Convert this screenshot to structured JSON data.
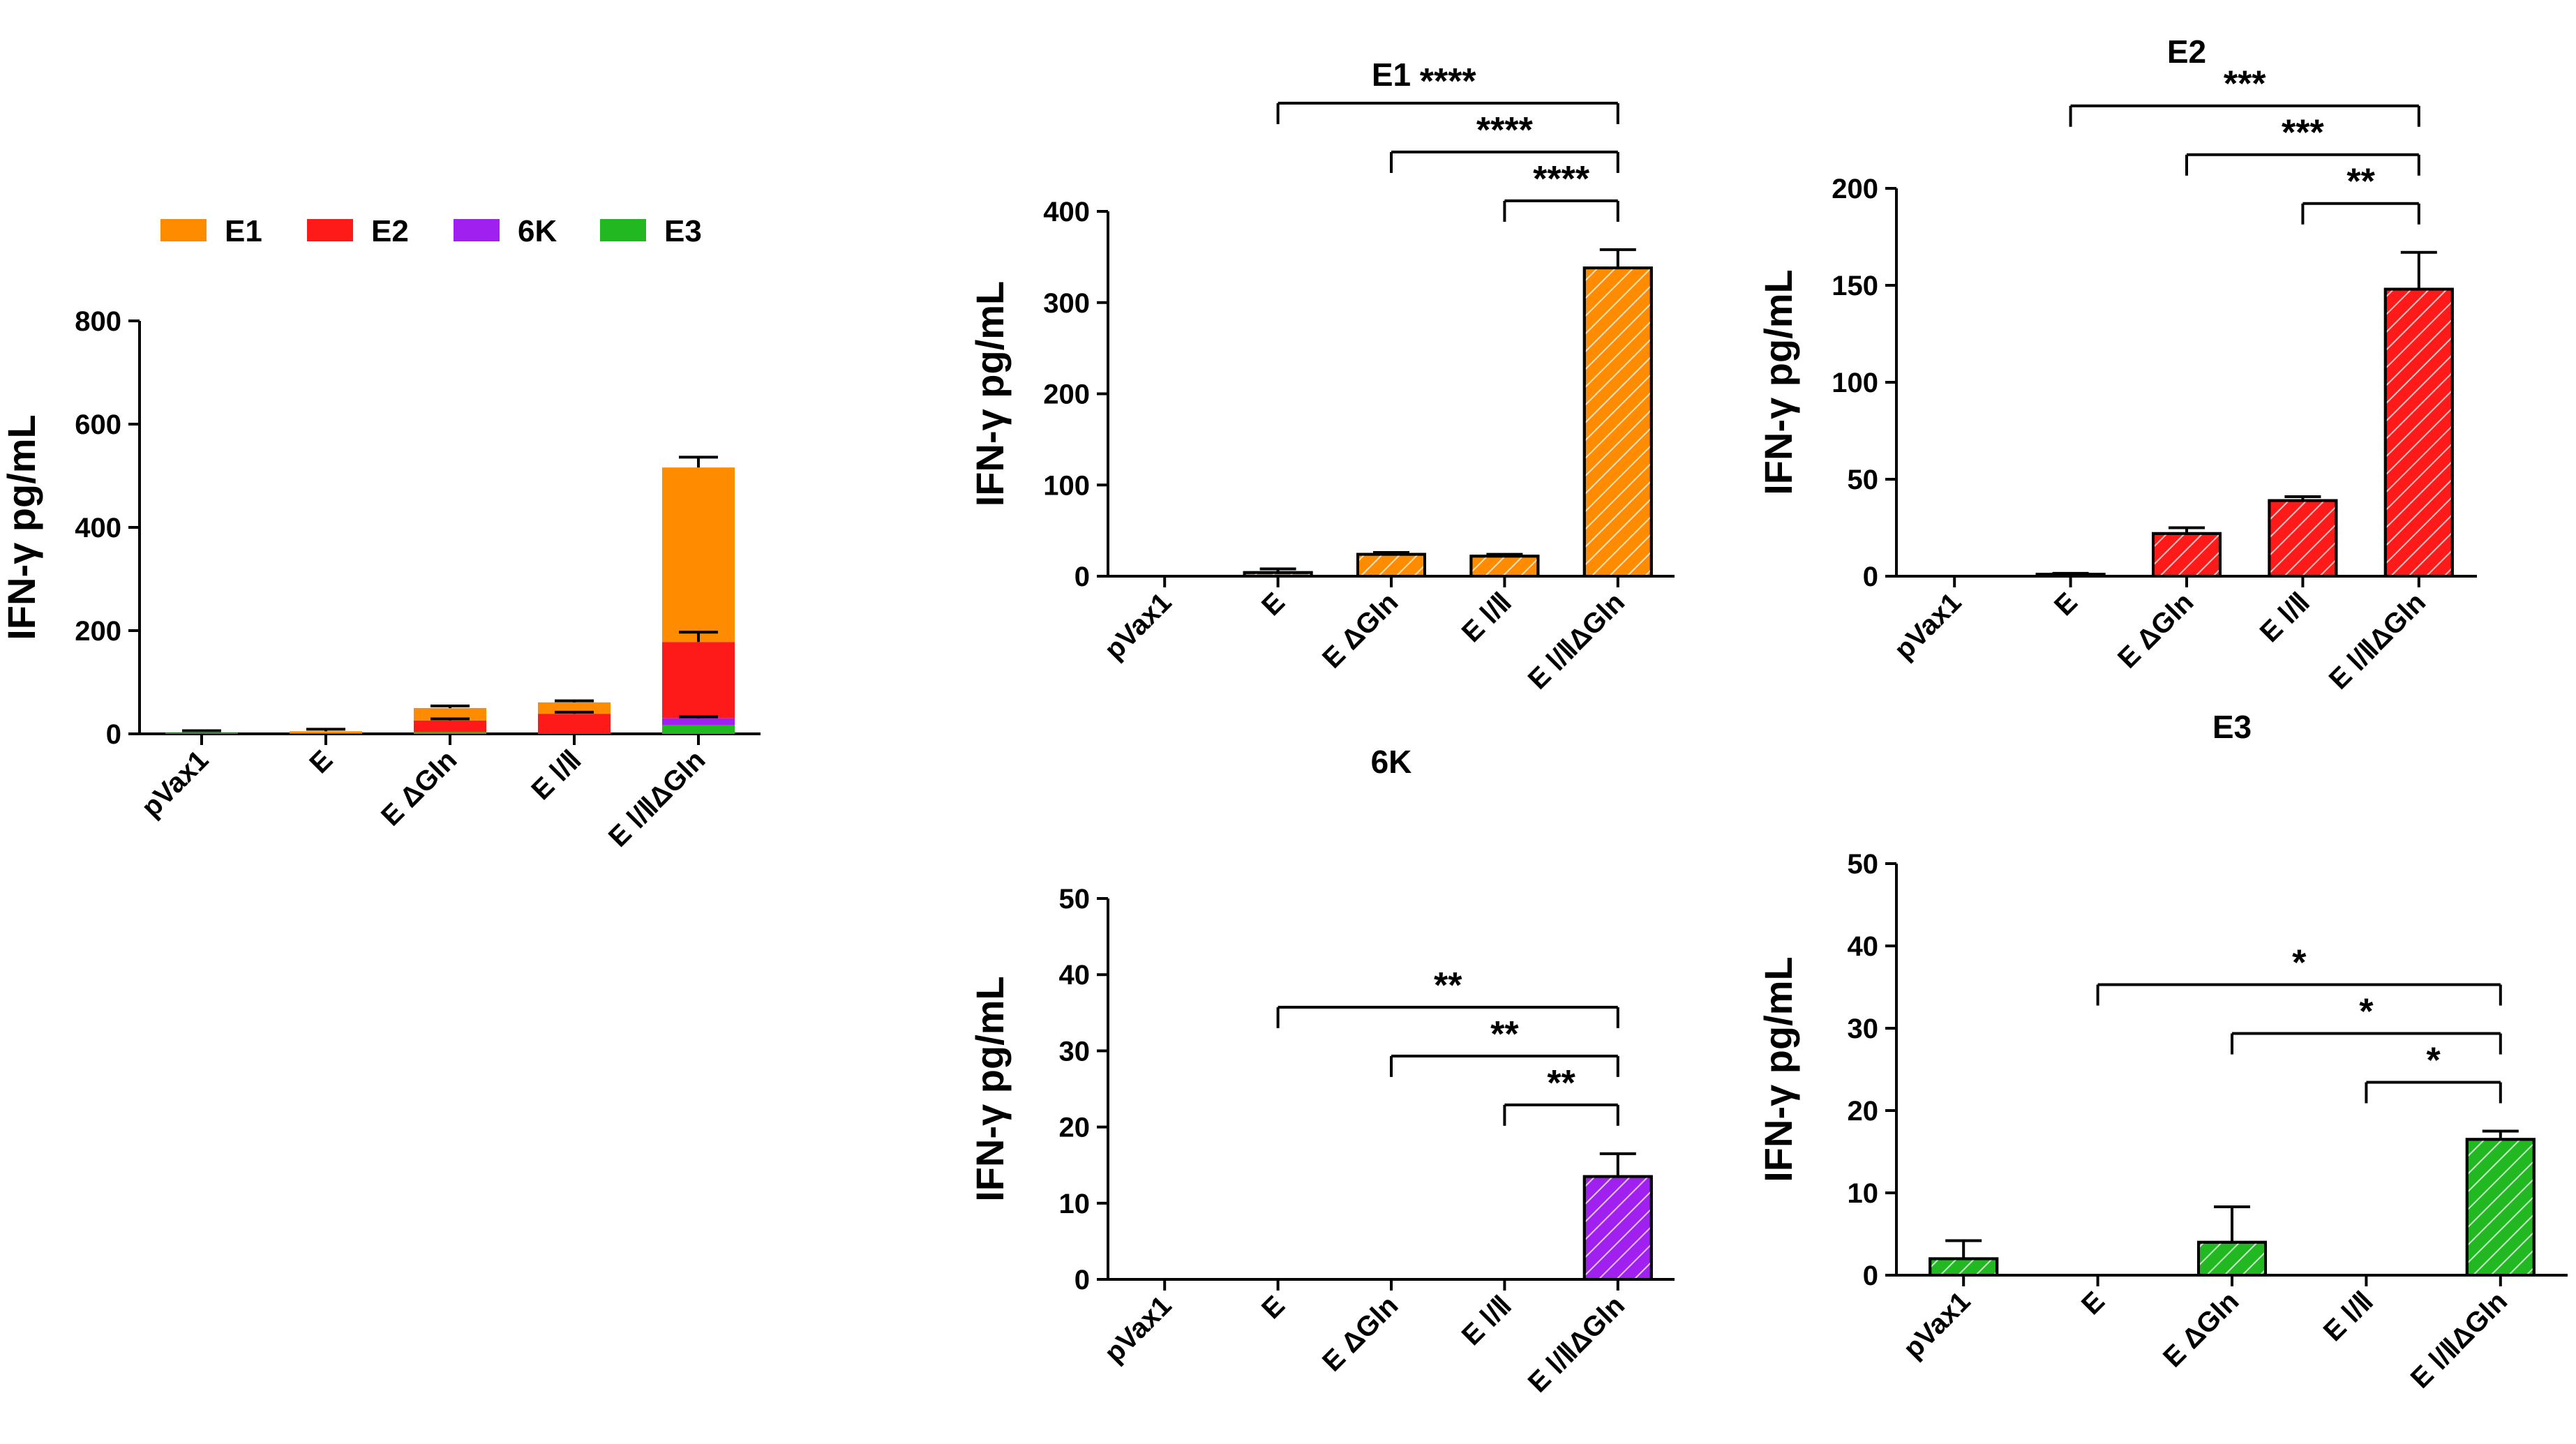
{
  "chart_data": [
    {
      "id": "stacked",
      "type": "bar",
      "stacked": true,
      "title": "",
      "xlabel": "",
      "ylabel": "IFN-γ pg/mL",
      "ylim": [
        0,
        800
      ],
      "yticks": [
        0,
        200,
        400,
        600,
        800
      ],
      "categories": [
        "pVax1",
        "E",
        "E ΔGln",
        "E Ⅰ/Ⅱ",
        "E Ⅰ/ⅡΔGln"
      ],
      "legend_position": "top",
      "series": [
        {
          "name": "E3",
          "color": "#22b822",
          "values": [
            2,
            0,
            4,
            0,
            17
          ]
        },
        {
          "name": "6K",
          "color": "#a020f0",
          "values": [
            0,
            0,
            0,
            0,
            13
          ]
        },
        {
          "name": "E2",
          "color": "#ff1a1a",
          "values": [
            0,
            1,
            22,
            39,
            148
          ]
        },
        {
          "name": "E1",
          "color": "#ff8c00",
          "values": [
            0,
            4,
            24,
            22,
            338
          ]
        }
      ],
      "legend_order": [
        "E1",
        "E2",
        "6K",
        "E3"
      ],
      "error_bars": [
        {
          "category": 0,
          "top": 4,
          "err": 2
        },
        {
          "category": 1,
          "top": 5,
          "err": 4
        },
        {
          "category": 2,
          "top": 50,
          "err": 4
        },
        {
          "category": 3,
          "top": 61,
          "err": 3
        },
        {
          "category": 4,
          "top": 516,
          "err": 20
        },
        {
          "category": 2,
          "top": 26,
          "err": 3
        },
        {
          "category": 3,
          "top": 39,
          "err": 3
        },
        {
          "category": 4,
          "top": 178,
          "err": 19
        },
        {
          "category": 4,
          "top": 30,
          "err": 3
        }
      ]
    },
    {
      "id": "E1",
      "type": "bar",
      "title": "E1",
      "ylabel": "IFN-γ pg/mL",
      "ylim": [
        0,
        400
      ],
      "yticks": [
        0,
        100,
        200,
        300,
        400
      ],
      "categories": [
        "pVax1",
        "E",
        "E ΔGln",
        "E Ⅰ/Ⅱ",
        "E Ⅰ/ⅡΔGln"
      ],
      "color": "#ff8c00",
      "hatch": "diagonal",
      "values": [
        0,
        4,
        24,
        22,
        338
      ],
      "errors": [
        0,
        4,
        2,
        2,
        20
      ],
      "significance": [
        {
          "from": 1,
          "to": 4,
          "label": "****"
        },
        {
          "from": 2,
          "to": 4,
          "label": "****"
        },
        {
          "from": 3,
          "to": 4,
          "label": "****"
        }
      ]
    },
    {
      "id": "E2",
      "type": "bar",
      "title": "E2",
      "ylabel": "IFN-γ pg/mL",
      "ylim": [
        0,
        200
      ],
      "yticks": [
        0,
        50,
        100,
        150,
        200
      ],
      "categories": [
        "pVax1",
        "E",
        "E ΔGln",
        "E Ⅰ/Ⅱ",
        "E Ⅰ/ⅡΔGln"
      ],
      "color": "#ff1a1a",
      "hatch": "diagonal",
      "values": [
        0,
        1,
        22,
        39,
        148
      ],
      "errors": [
        0,
        0.5,
        3,
        2,
        19
      ],
      "significance": [
        {
          "from": 1,
          "to": 4,
          "label": "***"
        },
        {
          "from": 2,
          "to": 4,
          "label": "***"
        },
        {
          "from": 3,
          "to": 4,
          "label": "**"
        }
      ]
    },
    {
      "id": "6K",
      "type": "bar",
      "title": "6K",
      "ylabel": "IFN-γ pg/mL",
      "ylim": [
        0,
        50
      ],
      "yticks": [
        0,
        10,
        20,
        30,
        40,
        50
      ],
      "categories": [
        "pVax1",
        "E",
        "E ΔGln",
        "E Ⅰ/Ⅱ",
        "E Ⅰ/ⅡΔGln"
      ],
      "color": "#a020f0",
      "hatch": "diagonal",
      "values": [
        0,
        0,
        0,
        0,
        13.5
      ],
      "errors": [
        0,
        0,
        0,
        0,
        3
      ],
      "significance": [
        {
          "from": 1,
          "to": 4,
          "label": "**"
        },
        {
          "from": 2,
          "to": 4,
          "label": "**"
        },
        {
          "from": 3,
          "to": 4,
          "label": "**"
        }
      ]
    },
    {
      "id": "E3",
      "type": "bar",
      "title": "E3",
      "ylabel": "IFN-γ pg/mL",
      "ylim": [
        0,
        50
      ],
      "yticks": [
        0,
        10,
        20,
        30,
        40,
        50
      ],
      "categories": [
        "pVax1",
        "E",
        "E ΔGln",
        "E Ⅰ/Ⅱ",
        "E Ⅰ/ⅡΔGln"
      ],
      "color": "#22b822",
      "hatch": "diagonal",
      "values": [
        2,
        0,
        4,
        0,
        16.5
      ],
      "errors": [
        2.2,
        0,
        4.3,
        0,
        1
      ],
      "significance": [
        {
          "from": 1,
          "to": 4,
          "label": "*"
        },
        {
          "from": 2,
          "to": 4,
          "label": "*"
        },
        {
          "from": 3,
          "to": 4,
          "label": "*"
        }
      ]
    }
  ]
}
